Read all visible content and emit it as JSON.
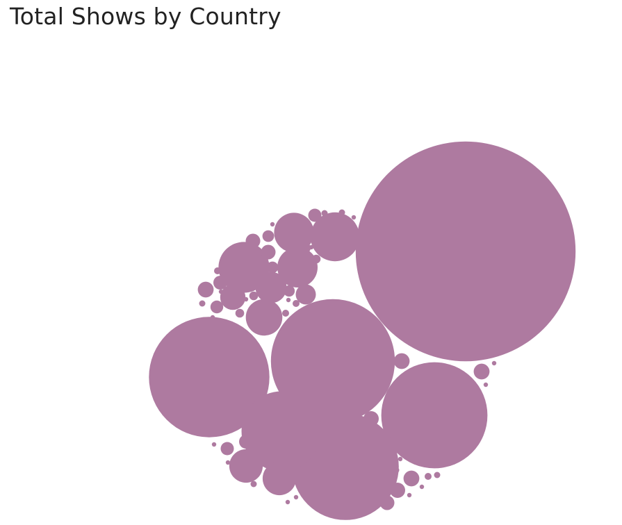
{
  "title": "Total Shows by Country",
  "colors": {
    "bubble": "#ae7aa0"
  },
  "chart_data": {
    "type": "bubble",
    "title": "Total Shows by Country",
    "values": [
      25020,
      7520,
      7950,
      5840,
      5900,
      3310,
      1340,
      1240,
      840,
      820,
      690,
      580,
      580,
      500,
      330,
      210,
      130,
      130,
      120,
      100,
      130,
      90,
      90,
      130,
      110,
      120,
      70,
      110,
      100,
      110,
      70,
      85,
      50,
      40,
      40,
      40,
      65,
      20,
      20,
      25,
      25,
      20,
      20,
      25,
      25,
      20,
      20,
      20,
      10,
      10,
      10,
      10,
      10,
      10,
      10,
      10,
      10,
      10,
      10,
      10,
      10,
      10,
      10,
      10,
      10,
      10,
      10,
      10
    ]
  }
}
